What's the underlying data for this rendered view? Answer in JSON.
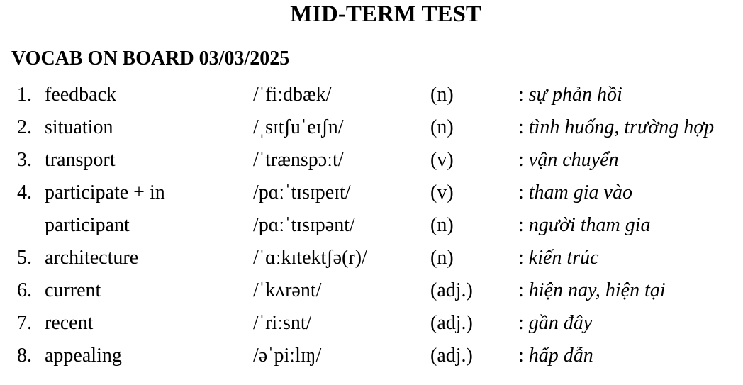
{
  "title": "MID-TERM TEST",
  "heading": "VOCAB ON BOARD 03/03/2025",
  "rows": [
    {
      "num": "1.",
      "word": "feedback",
      "ipa": "/ˈfiːdbæk/",
      "pos": "(n)",
      "meaning": "sự phản hồi"
    },
    {
      "num": "2.",
      "word": "situation",
      "ipa": "/ˌsɪtʃuˈeɪʃn/",
      "pos": "(n)",
      "meaning": "tình huống, trường hợp"
    },
    {
      "num": "3.",
      "word": "transport",
      "ipa": "/ˈtrænspɔːt/",
      "pos": "(v)",
      "meaning": "vận chuyển"
    },
    {
      "num": "4.",
      "word": "participate + in",
      "ipa": "/pɑːˈtɪsɪpeɪt/",
      "pos": "(v)",
      "meaning": "tham gia vào"
    },
    {
      "num": "",
      "word": "participant",
      "ipa": "/pɑːˈtɪsɪpənt/",
      "pos": "(n)",
      "meaning": "người tham gia"
    },
    {
      "num": "5.",
      "word": "architecture",
      "ipa": "/ˈɑːkɪtektʃə(r)/",
      "pos": "(n)",
      "meaning": "kiến trúc"
    },
    {
      "num": "6.",
      "word": "current",
      "ipa": "/ˈkʌrənt/",
      "pos": "(adj.)",
      "meaning": "hiện nay, hiện tại"
    },
    {
      "num": "7.",
      "word": "recent",
      "ipa": "/ˈriːsnt/",
      "pos": "(adj.)",
      "meaning": "gần đây"
    },
    {
      "num": "8.",
      "word": "appealing",
      "ipa": "/əˈpiːlɪŋ/",
      "pos": "(adj.)",
      "meaning": "hấp dẫn"
    }
  ]
}
